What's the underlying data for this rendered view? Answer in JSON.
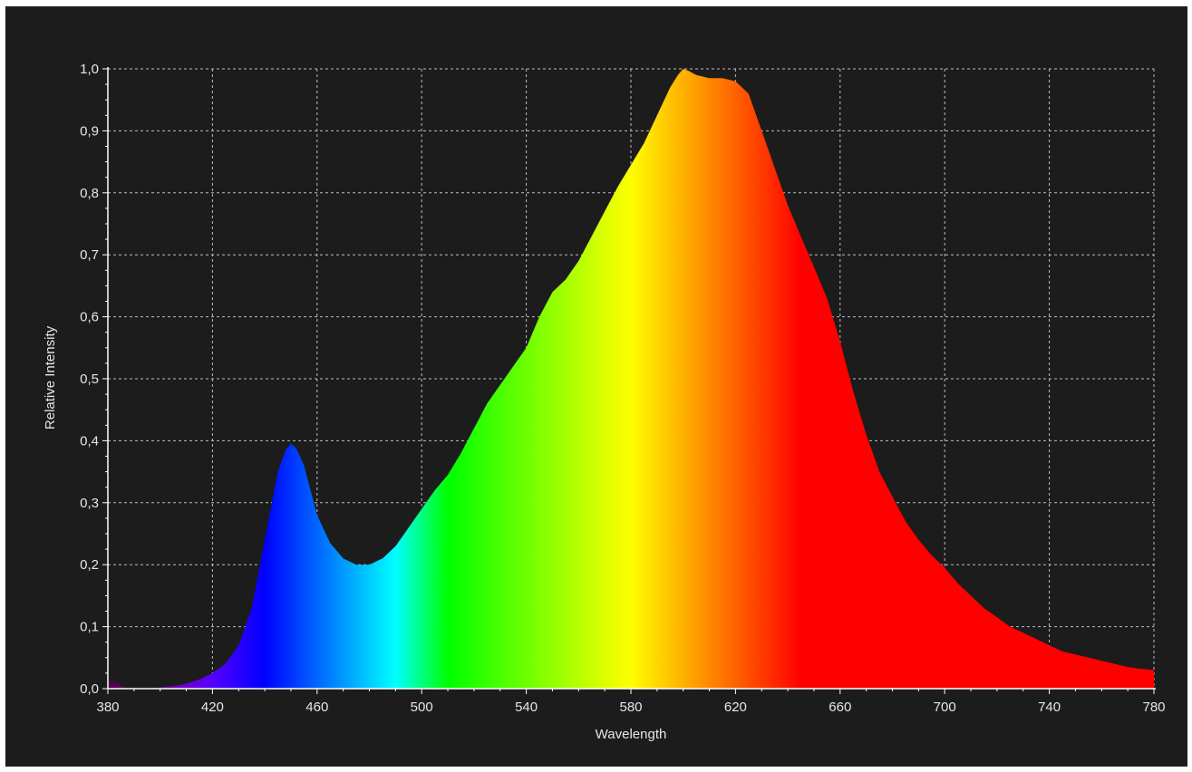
{
  "colors": {
    "panel_background": "#1c1c1c",
    "grid": "#bdbdbd",
    "axis": "#ffffff",
    "text": "#e6e6e6",
    "page_background": "#ffffff"
  },
  "chart_data": {
    "type": "area",
    "title": "",
    "xlabel": "Wavelength",
    "ylabel": "Relative Intensity",
    "xlim": [
      380,
      780
    ],
    "ylim": [
      0,
      1.0
    ],
    "x_ticks": [
      380,
      420,
      460,
      500,
      540,
      580,
      620,
      660,
      700,
      740,
      780
    ],
    "x_tick_labels": [
      "380",
      "420",
      "460",
      "500",
      "540",
      "580",
      "620",
      "660",
      "700",
      "740",
      "780"
    ],
    "y_ticks": [
      0,
      0.1,
      0.2,
      0.3,
      0.4,
      0.5,
      0.6,
      0.7,
      0.8,
      0.9,
      1.0
    ],
    "y_tick_labels": [
      "0,0",
      "0,1",
      "0,2",
      "0,3",
      "0,4",
      "0,5",
      "0,6",
      "0,7",
      "0,8",
      "0,9",
      "1,0"
    ],
    "grid": true,
    "fill": "visible-spectrum gradient (violet to red by wavelength)",
    "series": [
      {
        "x": [
          380,
          382,
          384,
          386,
          388,
          390,
          395,
          400,
          405,
          410,
          415,
          420,
          425,
          430,
          435,
          440,
          445,
          448,
          450,
          452,
          455,
          460,
          465,
          470,
          475,
          480,
          485,
          490,
          495,
          500,
          505,
          510,
          515,
          520,
          525,
          530,
          535,
          540,
          545,
          550,
          555,
          560,
          565,
          570,
          575,
          580,
          585,
          590,
          595,
          598,
          600,
          602,
          605,
          610,
          615,
          620,
          625,
          630,
          635,
          640,
          645,
          650,
          655,
          660,
          665,
          670,
          675,
          680,
          685,
          690,
          695,
          700,
          705,
          710,
          715,
          720,
          725,
          730,
          735,
          740,
          745,
          750,
          755,
          760,
          765,
          770,
          775,
          780
        ],
        "values": [
          0.01,
          0.012,
          0.008,
          0.002,
          0,
          0,
          0,
          0.002,
          0.004,
          0.008,
          0.015,
          0.025,
          0.04,
          0.07,
          0.13,
          0.24,
          0.35,
          0.385,
          0.395,
          0.388,
          0.36,
          0.28,
          0.235,
          0.21,
          0.2,
          0.2,
          0.21,
          0.23,
          0.26,
          0.29,
          0.32,
          0.345,
          0.38,
          0.42,
          0.46,
          0.49,
          0.52,
          0.55,
          0.6,
          0.64,
          0.66,
          0.69,
          0.73,
          0.77,
          0.81,
          0.845,
          0.88,
          0.925,
          0.97,
          0.99,
          1.0,
          0.997,
          0.99,
          0.985,
          0.985,
          0.98,
          0.96,
          0.9,
          0.84,
          0.78,
          0.73,
          0.68,
          0.63,
          0.56,
          0.48,
          0.41,
          0.35,
          0.31,
          0.27,
          0.24,
          0.215,
          0.195,
          0.17,
          0.15,
          0.13,
          0.115,
          0.1,
          0.09,
          0.08,
          0.07,
          0.06,
          0.055,
          0.05,
          0.045,
          0.04,
          0.035,
          0.032,
          0.03
        ]
      }
    ]
  }
}
